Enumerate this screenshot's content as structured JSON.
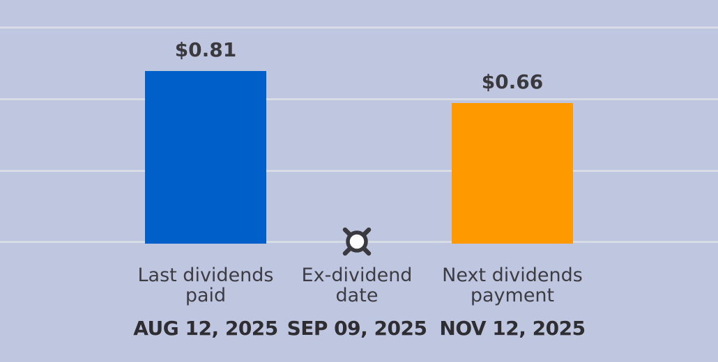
{
  "chart_data": {
    "type": "bar",
    "title": "",
    "xlabel": "",
    "ylabel": "",
    "unit": "USD",
    "ylim": [
      0,
      1.0
    ],
    "grid": true,
    "legend": false,
    "columns": [
      {
        "kind": "bar",
        "value": 0.81,
        "value_label": "$0.81",
        "label_lines": [
          "Last dividends",
          "paid"
        ],
        "date": "AUG 12, 2025",
        "color": "#005fc8"
      },
      {
        "kind": "marker",
        "marker": "circle-x-icon",
        "label_lines": [
          "Ex-dividend",
          "date"
        ],
        "date": "SEP 09, 2025"
      },
      {
        "kind": "bar",
        "value": 0.66,
        "value_label": "$0.66",
        "label_lines": [
          "Next dividends",
          "payment"
        ],
        "date": "NOV 12, 2025",
        "color": "#ff9900"
      }
    ],
    "colors": {
      "background": "#bfc6e0",
      "gridline": "#d8dce4",
      "value_text": "#3a3a3e",
      "category_text": "#3c3c42",
      "date_text": "#2e2e32",
      "bar_last_dividends": "#005fc8",
      "bar_next_dividends": "#ff9900",
      "marker_stroke": "#3a3a3e",
      "marker_fill": "#fdfdfd"
    }
  }
}
